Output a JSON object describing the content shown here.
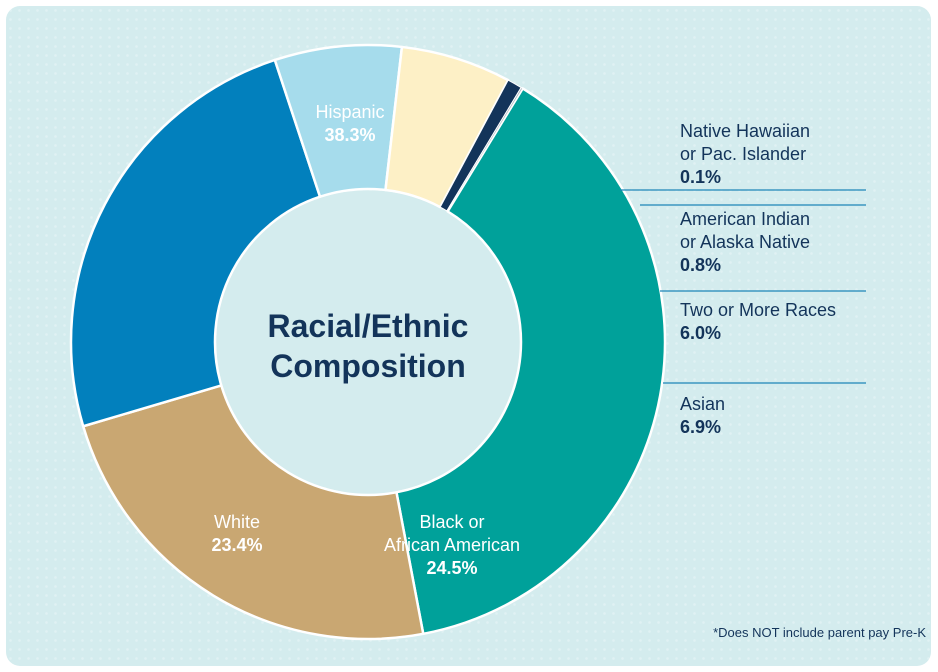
{
  "colors": {
    "background": "#d4ecee",
    "navy": "#13345a",
    "leader_line": "#1d86b9",
    "hole": "#d4ecee"
  },
  "center_title": [
    "Racial/Ethnic",
    "Composition"
  ],
  "footnote": "*Does NOT include parent pay Pre-K",
  "chart_data": {
    "type": "pie",
    "donut": true,
    "start_angle_deg": 58.6,
    "direction": "clockwise",
    "slices": [
      {
        "label_lines": [
          "Hispanic"
        ],
        "value_text": "38.3%",
        "value": 38.3,
        "color": "#00a19a",
        "label_side": "inside"
      },
      {
        "label_lines": [
          "White"
        ],
        "value_text": "23.4%",
        "value": 23.4,
        "color": "#c9a772",
        "label_side": "inside"
      },
      {
        "label_lines": [
          "Black or",
          "African American"
        ],
        "value_text": "24.5%",
        "value": 24.5,
        "color": "#0280bd",
        "label_side": "inside"
      },
      {
        "label_lines": [
          "Asian"
        ],
        "value_text": "6.9%",
        "value": 6.9,
        "color": "#a6dcec",
        "label_side": "outside"
      },
      {
        "label_lines": [
          "Two or More Races"
        ],
        "value_text": "6.0%",
        "value": 6.0,
        "color": "#fdf0c6",
        "label_side": "outside"
      },
      {
        "label_lines": [
          "American Indian",
          "or Alaska Native"
        ],
        "value_text": "0.8%",
        "value": 0.8,
        "color": "#13345a",
        "label_side": "outside"
      },
      {
        "label_lines": [
          "Native Hawaiian",
          "or Pac. Islander"
        ],
        "value_text": "0.1%",
        "value": 0.1,
        "color": "#a9b4bd",
        "label_side": "outside"
      }
    ]
  }
}
